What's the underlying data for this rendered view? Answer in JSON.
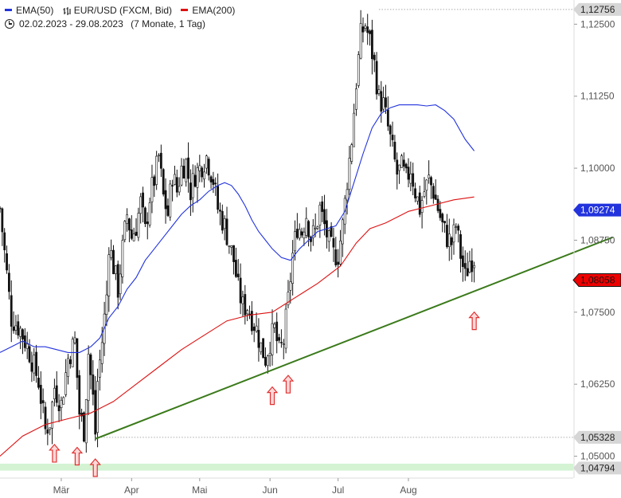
{
  "legend": {
    "ema50_label": "EMA(50)",
    "ema50_color": "#2233dd",
    "symbol_label": "EUR/USD (FXCM, Bid)",
    "ema200_label": "EMA(200)",
    "ema200_color": "#dd1111",
    "date_range": "02.02.2023 - 29.08.2023",
    "duration": "(7 Monate, 1 Tag)"
  },
  "chart_data": {
    "type": "candlestick",
    "ylim": [
      1.0462,
      1.1292
    ],
    "xlabels": [
      {
        "label": "Mär",
        "x": 27
      },
      {
        "label": "Apr",
        "x": 58
      },
      {
        "label": "Mai",
        "x": 88
      },
      {
        "label": "Jun",
        "x": 119
      },
      {
        "label": "Jul",
        "x": 149
      },
      {
        "label": "Aug",
        "x": 180
      }
    ],
    "yticks": [
      {
        "label": "1,12500",
        "value": 1.125
      },
      {
        "label": "1,11250",
        "value": 1.1125
      },
      {
        "label": "1,10000",
        "value": 1.1
      },
      {
        "label": "1,08750",
        "value": 1.0875
      },
      {
        "label": "1,07500",
        "value": 1.075
      },
      {
        "label": "1,06250",
        "value": 1.0625
      },
      {
        "label": "1,05000",
        "value": 1.05
      }
    ],
    "price_badges": [
      {
        "label": "1,12756",
        "value": 1.12756,
        "style": "gray"
      },
      {
        "label": "1,09274",
        "value": 1.09274,
        "style": "blue"
      },
      {
        "label": "1,08058",
        "value": 1.08058,
        "style": "red"
      },
      {
        "label": "1,05328",
        "value": 1.05328,
        "style": "gray"
      },
      {
        "label": "1,04794",
        "value": 1.04794,
        "style": "gray"
      }
    ],
    "x_last": 209,
    "path": [
      [
        0,
        1.093
      ],
      [
        5,
        1.074
      ],
      [
        9,
        1.072
      ],
      [
        13,
        1.068
      ],
      [
        17,
        1.063
      ],
      [
        20,
        1.0545
      ],
      [
        22,
        1.056
      ],
      [
        24,
        1.062
      ],
      [
        27,
        1.059
      ],
      [
        30,
        1.067
      ],
      [
        33,
        1.07
      ],
      [
        35,
        1.0575
      ],
      [
        37,
        1.0545
      ],
      [
        39,
        1.068
      ],
      [
        41,
        1.06
      ],
      [
        42,
        1.054
      ],
      [
        43,
        1.063
      ],
      [
        45,
        1.07
      ],
      [
        47,
        1.078
      ],
      [
        48,
        1.087
      ],
      [
        50,
        1.083
      ],
      [
        52,
        1.079
      ],
      [
        54,
        1.086
      ],
      [
        56,
        1.092
      ],
      [
        58,
        1.088
      ],
      [
        60,
        1.09
      ],
      [
        62,
        1.094
      ],
      [
        64,
        1.089
      ],
      [
        66,
        1.095
      ],
      [
        68,
        1.098
      ],
      [
        70,
        1.102
      ],
      [
        72,
        1.095
      ],
      [
        74,
        1.092
      ],
      [
        76,
        1.099
      ],
      [
        78,
        1.096
      ],
      [
        80,
        1.1
      ],
      [
        82,
        1.101
      ],
      [
        84,
        1.096
      ],
      [
        86,
        1.099
      ],
      [
        88,
        1.1
      ],
      [
        91,
        1.102
      ],
      [
        94,
        1.098
      ],
      [
        96,
        1.093
      ],
      [
        99,
        1.09
      ],
      [
        101,
        1.087
      ],
      [
        103,
        1.084
      ],
      [
        105,
        1.079
      ],
      [
        107,
        1.076
      ],
      [
        109,
        1.076
      ],
      [
        111,
        1.074
      ],
      [
        113,
        1.072
      ],
      [
        115,
        1.069
      ],
      [
        117,
        1.067
      ],
      [
        119,
        1.07
      ],
      [
        121,
        1.072
      ],
      [
        123,
        1.068
      ],
      [
        125,
        1.07
      ],
      [
        127,
        1.077
      ],
      [
        129,
        1.085
      ],
      [
        131,
        1.09
      ],
      [
        133,
        1.089
      ],
      [
        135,
        1.092
      ],
      [
        137,
        1.088
      ],
      [
        139,
        1.089
      ],
      [
        141,
        1.093
      ],
      [
        143,
        1.09
      ],
      [
        145,
        1.087
      ],
      [
        147,
        1.085
      ],
      [
        149,
        1.085
      ],
      [
        151,
        1.09
      ],
      [
        153,
        1.098
      ],
      [
        155,
        1.105
      ],
      [
        157,
        1.115
      ],
      [
        159,
        1.123
      ],
      [
        161,
        1.125
      ],
      [
        163,
        1.122
      ],
      [
        165,
        1.118
      ],
      [
        167,
        1.112
      ],
      [
        169,
        1.111
      ],
      [
        171,
        1.107
      ],
      [
        173,
        1.103
      ],
      [
        175,
        1.099
      ],
      [
        177,
        1.1
      ],
      [
        179,
        1.098
      ],
      [
        181,
        1.1
      ],
      [
        183,
        1.096
      ],
      [
        185,
        1.093
      ],
      [
        187,
        1.096
      ],
      [
        189,
        1.098
      ],
      [
        191,
        1.096
      ],
      [
        193,
        1.093
      ],
      [
        195,
        1.09
      ],
      [
        197,
        1.088
      ],
      [
        199,
        1.087
      ],
      [
        201,
        1.09
      ],
      [
        203,
        1.085
      ],
      [
        205,
        1.081
      ],
      [
        207,
        1.084
      ],
      [
        209,
        1.0845
      ]
    ],
    "ema50": [
      [
        0,
        1.068
      ],
      [
        5,
        1.069
      ],
      [
        10,
        1.07
      ],
      [
        15,
        1.069
      ],
      [
        20,
        1.069
      ],
      [
        25,
        1.0685
      ],
      [
        30,
        1.068
      ],
      [
        35,
        1.068
      ],
      [
        40,
        1.069
      ],
      [
        44,
        1.0705
      ],
      [
        48,
        1.074
      ],
      [
        52,
        1.076
      ],
      [
        56,
        1.079
      ],
      [
        60,
        1.081
      ],
      [
        64,
        1.084
      ],
      [
        68,
        1.086
      ],
      [
        72,
        1.088
      ],
      [
        76,
        1.09
      ],
      [
        80,
        1.092
      ],
      [
        84,
        1.0935
      ],
      [
        88,
        1.0945
      ],
      [
        92,
        1.096
      ],
      [
        96,
        1.097
      ],
      [
        99,
        1.0975
      ],
      [
        102,
        1.097
      ],
      [
        105,
        1.0955
      ],
      [
        108,
        1.0935
      ],
      [
        111,
        1.091
      ],
      [
        114,
        1.089
      ],
      [
        117,
        1.0875
      ],
      [
        120,
        1.086
      ],
      [
        124,
        1.0845
      ],
      [
        128,
        1.084
      ],
      [
        132,
        1.086
      ],
      [
        136,
        1.0875
      ],
      [
        140,
        1.089
      ],
      [
        144,
        1.0895
      ],
      [
        148,
        1.09
      ],
      [
        152,
        1.0925
      ],
      [
        156,
        1.0975
      ],
      [
        160,
        1.1025
      ],
      [
        164,
        1.107
      ],
      [
        168,
        1.1095
      ],
      [
        172,
        1.1105
      ],
      [
        176,
        1.111
      ],
      [
        180,
        1.111
      ],
      [
        184,
        1.111
      ],
      [
        188,
        1.1108
      ],
      [
        192,
        1.111
      ],
      [
        196,
        1.11
      ],
      [
        200,
        1.1085
      ],
      [
        205,
        1.105
      ],
      [
        209,
        1.103
      ]
    ],
    "ema200": [
      [
        0,
        1.05
      ],
      [
        10,
        1.0535
      ],
      [
        20,
        1.0555
      ],
      [
        30,
        1.0565
      ],
      [
        40,
        1.0575
      ],
      [
        50,
        1.0595
      ],
      [
        60,
        1.0625
      ],
      [
        70,
        1.0655
      ],
      [
        80,
        1.0685
      ],
      [
        90,
        1.071
      ],
      [
        100,
        1.0735
      ],
      [
        110,
        1.0745
      ],
      [
        120,
        1.075
      ],
      [
        130,
        1.0775
      ],
      [
        140,
        1.08
      ],
      [
        150,
        1.083
      ],
      [
        157,
        1.087
      ],
      [
        163,
        1.0895
      ],
      [
        170,
        1.0905
      ],
      [
        180,
        1.0925
      ],
      [
        190,
        1.0935
      ],
      [
        200,
        1.0945
      ],
      [
        209,
        1.095
      ]
    ],
    "trendline": [
      [
        42,
        1.053
      ],
      [
        270,
        1.088
      ]
    ],
    "arrows": [
      {
        "x": 24,
        "y": 1.0505
      },
      {
        "x": 34,
        "y": 1.05
      },
      {
        "x": 42,
        "y": 1.048
      },
      {
        "x": 120,
        "y": 1.0605
      },
      {
        "x": 127,
        "y": 1.0625
      },
      {
        "x": 209,
        "y": 1.0735
      }
    ],
    "support_band": [
      1.0475,
      1.0487
    ]
  }
}
